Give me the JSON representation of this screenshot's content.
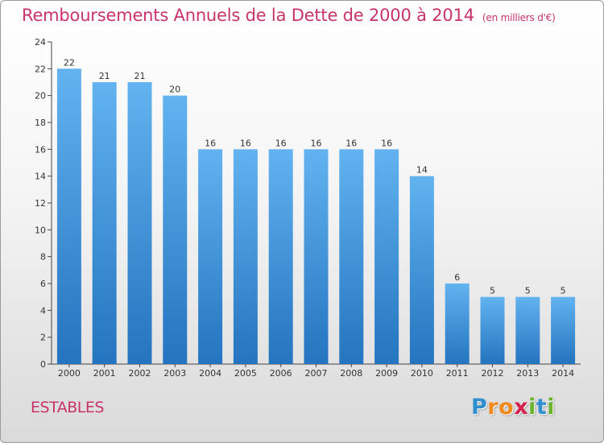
{
  "chart_data": {
    "type": "bar",
    "title": "Remboursements Annuels de la Dette de 2000 à 2014",
    "subtitle": "(en milliers d'€)",
    "categories": [
      "2000",
      "2001",
      "2002",
      "2003",
      "2004",
      "2005",
      "2006",
      "2007",
      "2008",
      "2009",
      "2010",
      "2011",
      "2012",
      "2013",
      "2014"
    ],
    "values": [
      22,
      21,
      21,
      20,
      16,
      16,
      16,
      16,
      16,
      16,
      14,
      6,
      5,
      5,
      5
    ],
    "xlabel": "",
    "ylabel": "",
    "ylim": [
      0,
      24
    ],
    "yticks": [
      0,
      2,
      4,
      6,
      8,
      10,
      12,
      14,
      16,
      18,
      20,
      22,
      24
    ],
    "grid": false,
    "bar_color": "#3a8fd6"
  },
  "footer": {
    "place": "ESTABLES",
    "logo_letters": [
      "P",
      "r",
      "o",
      "x",
      "i",
      "t",
      "i"
    ],
    "logo_colors": [
      "#2f8fcf",
      "#f08a1c",
      "#f08a1c",
      "#d4234f",
      "#6ab42d",
      "#2f8fcf",
      "#6ab42d"
    ]
  }
}
